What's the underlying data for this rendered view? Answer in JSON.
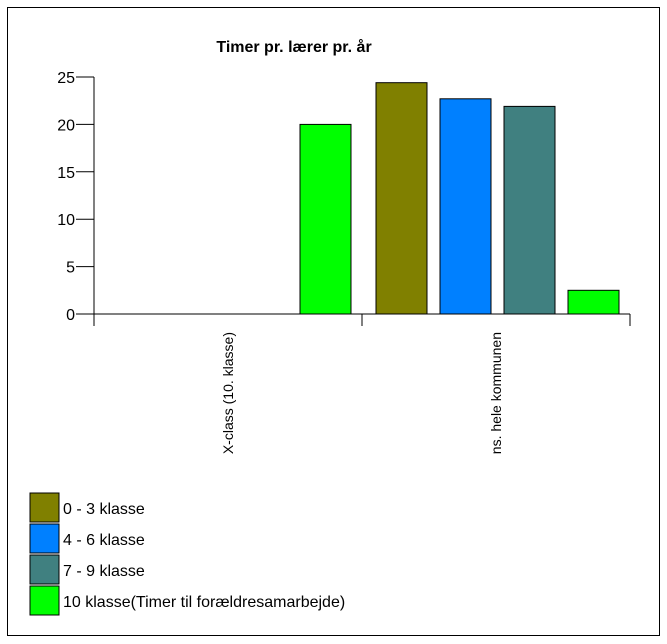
{
  "chart_data": {
    "type": "bar",
    "title": "Timer pr. lærer pr. år",
    "categories": [
      "X-class (10. klasse)",
      "ns. hele kommunen"
    ],
    "ylim": [
      0,
      25
    ],
    "yticks": [
      0,
      5,
      10,
      15,
      20,
      25
    ],
    "grid": false,
    "legend_position": "bottom-left",
    "series": [
      {
        "name": "0 - 3 klasse",
        "color": "#808000",
        "values": [
          0,
          24.4
        ]
      },
      {
        "name": "4 - 6 klasse",
        "color": "#0080ff",
        "values": [
          0,
          22.7
        ]
      },
      {
        "name": "7 - 9 klasse",
        "color": "#408080",
        "values": [
          0,
          21.9
        ]
      },
      {
        "name": "10 klasse(Timer til forældresamarbejde)",
        "color": "#00ff00",
        "values": [
          20.0,
          2.5
        ]
      }
    ]
  }
}
